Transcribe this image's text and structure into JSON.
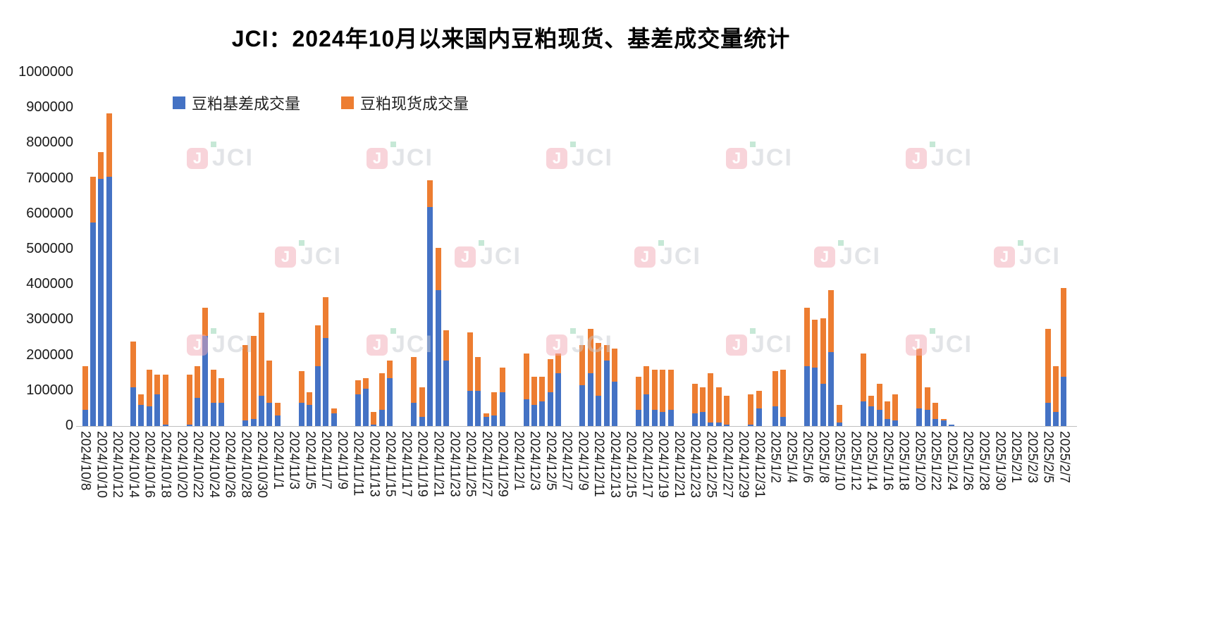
{
  "title": "JCI：2024年10月以来国内豆粕现货、基差成交量统计",
  "watermark": {
    "text": "JCI",
    "badge": "J"
  },
  "colors": {
    "basis_blue": "#4472C4",
    "spot_orange": "#ED7D31",
    "axis_line": "#bfbfbf"
  },
  "chart_data": {
    "type": "bar",
    "stacked": true,
    "title": "JCI：2024年10月以来国内豆粕现货、基差成交量统计",
    "xlabel": "",
    "ylabel": "",
    "ylim": [
      0,
      1000000
    ],
    "ytick_step": 100000,
    "grid": false,
    "legend_position": "top-left",
    "yticks": [
      "1000000",
      "900000",
      "800000",
      "700000",
      "600000",
      "500000",
      "400000",
      "300000",
      "200000",
      "100000",
      "0"
    ],
    "dates": [
      "2024/10/8",
      "2024/10/9",
      "2024/10/10",
      "2024/10/11",
      "2024/10/12",
      "2024/10/13",
      "2024/10/14",
      "2024/10/15",
      "2024/10/16",
      "2024/10/17",
      "2024/10/18",
      "2024/10/19",
      "2024/10/20",
      "2024/10/21",
      "2024/10/22",
      "2024/10/23",
      "2024/10/24",
      "2024/10/25",
      "2024/10/26",
      "2024/10/27",
      "2024/10/28",
      "2024/10/29",
      "2024/10/30",
      "2024/10/31",
      "2024/11/1",
      "2024/11/2",
      "2024/11/3",
      "2024/11/4",
      "2024/11/5",
      "2024/11/6",
      "2024/11/7",
      "2024/11/8",
      "2024/11/9",
      "2024/11/10",
      "2024/11/11",
      "2024/11/12",
      "2024/11/13",
      "2024/11/14",
      "2024/11/15",
      "2024/11/16",
      "2024/11/17",
      "2024/11/18",
      "2024/11/19",
      "2024/11/20",
      "2024/11/21",
      "2024/11/22",
      "2024/11/23",
      "2024/11/24",
      "2024/11/25",
      "2024/11/26",
      "2024/11/27",
      "2024/11/28",
      "2024/11/29",
      "2024/11/30",
      "2024/12/1",
      "2024/12/2",
      "2024/12/3",
      "2024/12/4",
      "2024/12/5",
      "2024/12/6",
      "2024/12/7",
      "2024/12/8",
      "2024/12/9",
      "2024/12/10",
      "2024/12/11",
      "2024/12/12",
      "2024/12/13",
      "2024/12/14",
      "2024/12/15",
      "2024/12/16",
      "2024/12/17",
      "2024/12/18",
      "2024/12/19",
      "2024/12/20",
      "2024/12/21",
      "2024/12/22",
      "2024/12/23",
      "2024/12/24",
      "2024/12/25",
      "2024/12/26",
      "2024/12/27",
      "2024/12/28",
      "2024/12/29",
      "2024/12/30",
      "2024/12/31",
      "2025/1/1",
      "2025/1/2",
      "2025/1/3",
      "2025/1/4",
      "2025/1/5",
      "2025/1/6",
      "2025/1/7",
      "2025/1/8",
      "2025/1/9",
      "2025/1/10",
      "2025/1/11",
      "2025/1/12",
      "2025/1/13",
      "2025/1/14",
      "2025/1/15",
      "2025/1/16",
      "2025/1/17",
      "2025/1/18",
      "2025/1/19",
      "2025/1/20",
      "2025/1/21",
      "2025/1/22",
      "2025/1/23",
      "2025/1/24",
      "2025/1/25",
      "2025/1/26",
      "2025/1/27",
      "2025/1/28",
      "2025/1/29",
      "2025/1/30",
      "2025/1/31",
      "2025/2/1",
      "2025/2/2",
      "2025/2/3",
      "2025/2/4",
      "2025/2/5",
      "2025/2/6",
      "2025/2/7"
    ],
    "xtick_labels": [
      "2024/10/8",
      "2024/10/10",
      "2024/10/12",
      "2024/10/14",
      "2024/10/16",
      "2024/10/18",
      "2024/10/20",
      "2024/10/22",
      "2024/10/24",
      "2024/10/26",
      "2024/10/28",
      "2024/10/30",
      "2024/11/1",
      "2024/11/3",
      "2024/11/5",
      "2024/11/7",
      "2024/11/9",
      "2024/11/11",
      "2024/11/13",
      "2024/11/15",
      "2024/11/17",
      "2024/11/19",
      "2024/11/21",
      "2024/11/23",
      "2024/11/25",
      "2024/11/27",
      "2024/11/29",
      "2024/12/1",
      "2024/12/3",
      "2024/12/5",
      "2024/12/7",
      "2024/12/9",
      "2024/12/11",
      "2024/12/13",
      "2024/12/15",
      "2024/12/17",
      "2024/12/19",
      "2024/12/21",
      "2024/12/23",
      "2024/12/25",
      "2024/12/27",
      "2024/12/29",
      "2024/12/31",
      "2025/1/2",
      "2025/1/4",
      "2025/1/6",
      "2025/1/8",
      "2025/1/10",
      "2025/1/12",
      "2025/1/14",
      "2025/1/16",
      "2025/1/18",
      "2025/1/20",
      "2025/1/22",
      "2025/1/24",
      "2025/1/26",
      "2025/1/28",
      "2025/1/30",
      "2025/2/1",
      "2025/2/3",
      "2025/2/5",
      "2025/2/7"
    ],
    "series": [
      {
        "name": "豆粕基差成交量",
        "color": "#4472C4",
        "values": [
          45000,
          575000,
          700000,
          705000,
          0,
          0,
          110000,
          60000,
          55000,
          90000,
          5000,
          0,
          0,
          5000,
          80000,
          255000,
          65000,
          65000,
          0,
          0,
          15000,
          20000,
          85000,
          65000,
          30000,
          0,
          0,
          65000,
          60000,
          170000,
          250000,
          35000,
          0,
          0,
          90000,
          105000,
          5000,
          45000,
          135000,
          0,
          0,
          65000,
          25000,
          620000,
          385000,
          185000,
          0,
          0,
          100000,
          100000,
          25000,
          30000,
          95000,
          0,
          0,
          75000,
          60000,
          70000,
          95000,
          150000,
          0,
          0,
          115000,
          150000,
          85000,
          185000,
          125000,
          0,
          0,
          45000,
          90000,
          45000,
          40000,
          45000,
          0,
          0,
          35000,
          40000,
          10000,
          10000,
          5000,
          0,
          0,
          5000,
          50000,
          0,
          55000,
          25000,
          0,
          0,
          170000,
          165000,
          120000,
          210000,
          10000,
          0,
          0,
          70000,
          55000,
          45000,
          20000,
          15000,
          0,
          0,
          50000,
          45000,
          20000,
          15000,
          5000,
          0,
          0,
          0,
          0,
          0,
          0,
          0,
          0,
          0,
          0,
          0,
          65000,
          40000,
          140000
        ]
      },
      {
        "name": "豆粕现货成交量",
        "color": "#ED7D31",
        "values": [
          125000,
          130000,
          75000,
          180000,
          0,
          0,
          130000,
          30000,
          105000,
          55000,
          140000,
          0,
          0,
          140000,
          90000,
          80000,
          95000,
          70000,
          0,
          0,
          215000,
          235000,
          235000,
          120000,
          35000,
          0,
          0,
          90000,
          35000,
          115000,
          115000,
          15000,
          0,
          0,
          40000,
          30000,
          35000,
          105000,
          50000,
          0,
          0,
          130000,
          85000,
          75000,
          120000,
          85000,
          0,
          0,
          165000,
          95000,
          10000,
          65000,
          70000,
          0,
          0,
          130000,
          80000,
          70000,
          95000,
          55000,
          0,
          0,
          115000,
          125000,
          150000,
          45000,
          95000,
          0,
          0,
          95000,
          80000,
          115000,
          120000,
          115000,
          0,
          0,
          85000,
          70000,
          140000,
          100000,
          80000,
          0,
          0,
          85000,
          50000,
          0,
          100000,
          135000,
          0,
          0,
          165000,
          135000,
          185000,
          175000,
          50000,
          0,
          0,
          135000,
          30000,
          75000,
          50000,
          75000,
          0,
          0,
          170000,
          65000,
          45000,
          5000,
          0,
          0,
          0,
          0,
          0,
          0,
          0,
          0,
          0,
          0,
          0,
          0,
          210000,
          130000,
          250000
        ]
      }
    ]
  }
}
